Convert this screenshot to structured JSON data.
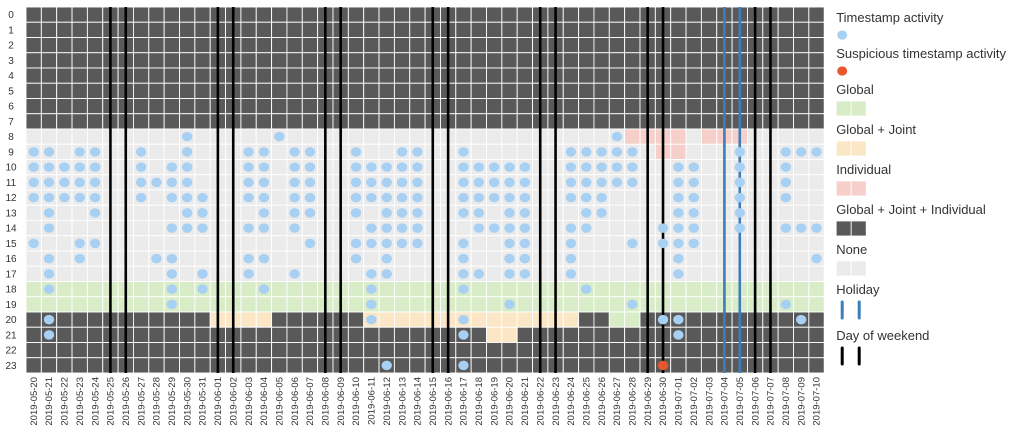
{
  "chart_data": {
    "type": "heatmap",
    "title": "",
    "hours": [
      "0",
      "1",
      "2",
      "3",
      "4",
      "5",
      "6",
      "7",
      "8",
      "9",
      "10",
      "11",
      "12",
      "13",
      "14",
      "15",
      "16",
      "17",
      "18",
      "19",
      "20",
      "21",
      "22",
      "23"
    ],
    "dates": [
      "2019-05-20",
      "2019-05-21",
      "2019-05-22",
      "2019-05-23",
      "2019-05-24",
      "2019-05-25",
      "2019-05-26",
      "2019-05-27",
      "2019-05-28",
      "2019-05-29",
      "2019-05-30",
      "2019-05-31",
      "2019-06-01",
      "2019-06-02",
      "2019-06-03",
      "2019-06-04",
      "2019-06-05",
      "2019-06-06",
      "2019-06-07",
      "2019-06-08",
      "2019-06-09",
      "2019-06-10",
      "2019-06-11",
      "2019-06-12",
      "2019-06-13",
      "2019-06-14",
      "2019-06-15",
      "2019-06-16",
      "2019-06-17",
      "2019-06-18",
      "2019-06-19",
      "2019-06-20",
      "2019-06-21",
      "2019-06-22",
      "2019-06-23",
      "2019-06-24",
      "2019-06-25",
      "2019-06-26",
      "2019-06-27",
      "2019-06-28",
      "2019-06-29",
      "2019-06-30",
      "2019-07-01",
      "2019-07-02",
      "2019-07-03",
      "2019-07-04",
      "2019-07-05",
      "2019-07-06",
      "2019-07-07",
      "2019-07-08",
      "2019-07-09",
      "2019-07-10"
    ],
    "base_categories": {
      "0": "global_joint_individual",
      "1": "global_joint_individual",
      "2": "global_joint_individual",
      "3": "global_joint_individual",
      "4": "global_joint_individual",
      "5": "global_joint_individual",
      "6": "global_joint_individual",
      "7": "global_joint_individual",
      "8": "none",
      "9": "none",
      "10": "none",
      "11": "none",
      "12": "none",
      "13": "none",
      "14": "none",
      "15": "none",
      "16": "none",
      "17": "none",
      "18": "global",
      "19": "global",
      "20": "global_joint_individual",
      "21": "global_joint_individual",
      "22": "global_joint_individual",
      "23": "global_joint_individual"
    },
    "category_overrides": [
      {
        "hour": 8,
        "dates": [
          "2019-06-28",
          "2019-06-29",
          "2019-06-30",
          "2019-07-01",
          "2019-07-03",
          "2019-07-04",
          "2019-07-05"
        ],
        "category": "individual"
      },
      {
        "hour": 9,
        "dates": [
          "2019-06-30",
          "2019-07-01"
        ],
        "category": "individual"
      },
      {
        "hour": 20,
        "dates": [
          "2019-06-01",
          "2019-06-02",
          "2019-06-03",
          "2019-06-04",
          "2019-06-11",
          "2019-06-12",
          "2019-06-13",
          "2019-06-14",
          "2019-06-15",
          "2019-06-16",
          "2019-06-17",
          "2019-06-18",
          "2019-06-19",
          "2019-06-20",
          "2019-06-21",
          "2019-06-22",
          "2019-06-23",
          "2019-06-24"
        ],
        "category": "global_joint"
      },
      {
        "hour": 20,
        "dates": [
          "2019-06-27",
          "2019-06-28"
        ],
        "category": "global"
      },
      {
        "hour": 21,
        "dates": [
          "2019-06-19",
          "2019-06-20"
        ],
        "category": "global_joint"
      }
    ],
    "activity": {
      "2019-05-20": [
        9,
        10,
        11,
        12,
        15
      ],
      "2019-05-21": [
        9,
        10,
        11,
        12,
        13,
        14,
        16,
        17,
        18,
        20,
        21
      ],
      "2019-05-22": [
        10,
        11,
        12
      ],
      "2019-05-23": [
        9,
        10,
        11,
        12,
        15,
        16
      ],
      "2019-05-24": [
        9,
        10,
        11,
        12,
        13,
        15
      ],
      "2019-05-27": [
        9,
        10,
        11,
        12
      ],
      "2019-05-28": [
        11,
        16
      ],
      "2019-05-29": [
        10,
        11,
        12,
        14,
        16,
        17,
        18,
        19
      ],
      "2019-05-30": [
        8,
        9,
        10,
        11,
        12,
        13,
        14
      ],
      "2019-05-31": [
        12,
        13,
        14,
        17,
        18
      ],
      "2019-06-03": [
        9,
        10,
        11,
        12,
        14,
        16,
        17
      ],
      "2019-06-04": [
        9,
        10,
        11,
        12,
        13,
        14,
        16,
        18
      ],
      "2019-06-05": [
        8
      ],
      "2019-06-06": [
        9,
        10,
        11,
        12,
        13,
        14,
        17
      ],
      "2019-06-07": [
        9,
        10,
        11,
        12,
        13,
        15
      ],
      "2019-06-10": [
        9,
        10,
        11,
        12,
        13,
        15,
        16
      ],
      "2019-06-11": [
        10,
        11,
        12,
        14,
        15,
        17,
        18,
        19,
        20
      ],
      "2019-06-12": [
        10,
        11,
        12,
        13,
        14,
        15,
        16,
        17,
        23
      ],
      "2019-06-13": [
        9,
        10,
        11,
        12,
        13,
        14,
        15
      ],
      "2019-06-14": [
        9,
        10,
        11,
        12,
        13,
        14,
        15
      ],
      "2019-06-17": [
        9,
        10,
        11,
        12,
        13,
        15,
        16,
        17,
        18,
        20,
        21,
        23
      ],
      "2019-06-18": [
        10,
        11,
        12,
        13,
        14,
        17
      ],
      "2019-06-19": [
        10,
        11,
        12,
        14
      ],
      "2019-06-20": [
        10,
        11,
        12,
        13,
        14,
        15,
        16,
        17,
        19
      ],
      "2019-06-21": [
        10,
        11,
        12,
        13,
        14,
        15,
        16,
        17
      ],
      "2019-06-24": [
        9,
        10,
        11,
        12,
        14,
        15,
        16,
        17
      ],
      "2019-06-25": [
        9,
        10,
        11,
        12,
        13,
        14,
        18
      ],
      "2019-06-26": [
        9,
        10,
        11,
        12,
        13
      ],
      "2019-06-27": [
        8,
        9,
        10,
        11
      ],
      "2019-06-28": [
        9,
        10,
        11,
        15,
        19
      ],
      "2019-06-30": [
        14,
        15,
        20
      ],
      "2019-07-01": [
        10,
        11,
        12,
        13,
        14,
        15,
        16,
        17,
        20,
        21
      ],
      "2019-07-02": [
        10,
        11,
        12,
        13,
        14,
        15
      ],
      "2019-07-05": [
        9,
        10,
        11,
        12,
        13,
        14
      ],
      "2019-07-08": [
        9,
        10,
        11,
        12,
        14,
        19
      ],
      "2019-07-09": [
        9,
        14,
        20
      ],
      "2019-07-10": [
        9,
        14,
        16
      ]
    },
    "suspicious_activity": [
      {
        "date": "2019-06-30",
        "hour": 23
      }
    ],
    "holidays": [
      "2019-07-04",
      "2019-07-05"
    ],
    "weekend_days": [
      "2019-05-25",
      "2019-05-26",
      "2019-06-01",
      "2019-06-02",
      "2019-06-08",
      "2019-06-09",
      "2019-06-15",
      "2019-06-16",
      "2019-06-22",
      "2019-06-23",
      "2019-06-29",
      "2019-06-30",
      "2019-07-06",
      "2019-07-07"
    ],
    "colors": {
      "global_joint_individual": "#595959",
      "none": "#ebebeb",
      "global": "#d9ecc8",
      "global_joint": "#fbe6c6",
      "individual": "#f6cfca",
      "activity": "#a7d0f2",
      "suspicious": "#e8572e",
      "holiday": "#3d7db8",
      "weekend": "#000000",
      "cell_border": "#ffffff"
    },
    "legend": [
      {
        "id": "activity",
        "label": "Timestamp activity"
      },
      {
        "id": "suspicious",
        "label": "Suspicious timestamp activity"
      },
      {
        "id": "global",
        "label": "Global"
      },
      {
        "id": "global_joint",
        "label": "Global + Joint"
      },
      {
        "id": "individual",
        "label": "Individual"
      },
      {
        "id": "global_joint_individual",
        "label": "Global + Joint + Individual"
      },
      {
        "id": "none",
        "label": "None"
      },
      {
        "id": "holiday",
        "label": "Holiday"
      },
      {
        "id": "weekend",
        "label": "Day of weekend"
      }
    ]
  }
}
